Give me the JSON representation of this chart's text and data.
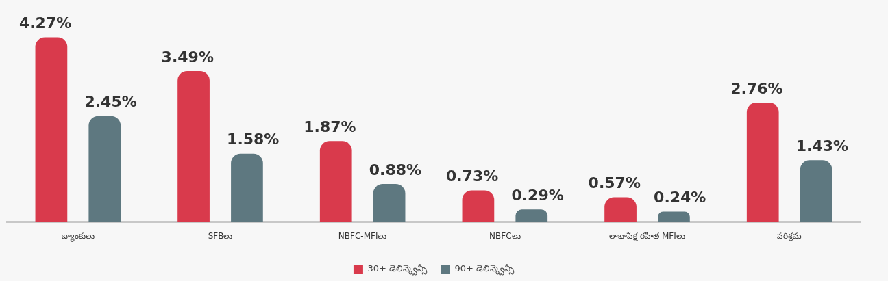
{
  "chart_data": {
    "type": "bar",
    "categories": [
      "బ్యాంకులు",
      "SFBలు",
      "NBFC-MFIలు",
      "NBFCలు",
      "లాభాపేక్ష రహిత MFIలు",
      "పరిశ్రమ"
    ],
    "series": [
      {
        "name": "30+ డెలిన్క్వెన్సీ",
        "color": "#d93a4c",
        "values": [
          4.27,
          3.49,
          1.87,
          0.73,
          0.57,
          2.76
        ],
        "value_labels": [
          "4.27%",
          "3.49%",
          "1.87%",
          "0.73%",
          "0.57%",
          "2.76%"
        ]
      },
      {
        "name": "90+ డెలిన్క్వెన్సీ",
        "color": "#5e7880",
        "values": [
          2.45,
          1.58,
          0.88,
          0.29,
          0.24,
          1.43
        ],
        "value_labels": [
          "2.45%",
          "1.58%",
          "0.88%",
          "0.29%",
          "0.24%",
          "1.43%"
        ]
      }
    ],
    "grid": false,
    "legend": "bottom"
  }
}
